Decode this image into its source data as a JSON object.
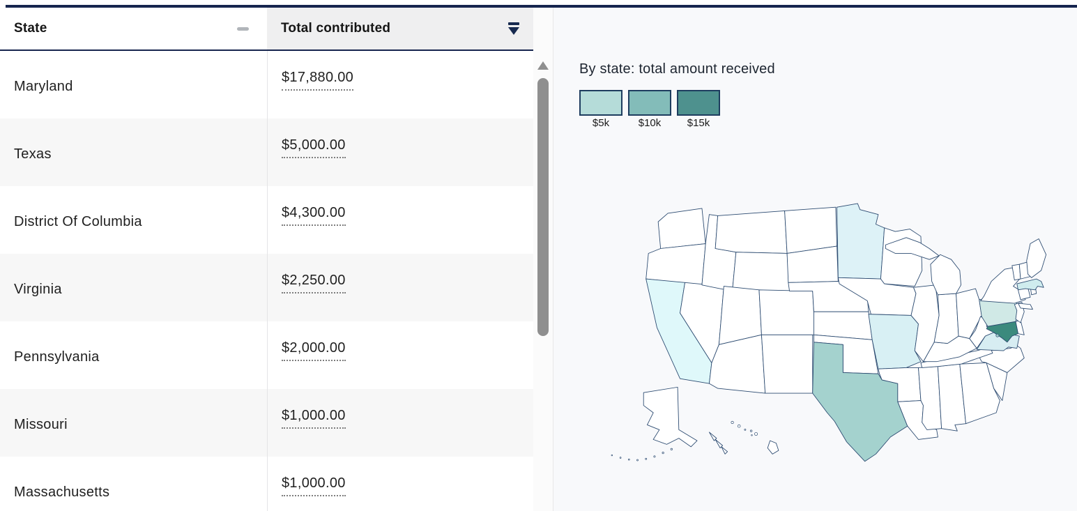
{
  "table": {
    "header": {
      "state_label": "State",
      "amount_label": "Total contributed"
    },
    "rows": [
      {
        "state": "Maryland",
        "amount": "$17,880.00"
      },
      {
        "state": "Texas",
        "amount": "$5,000.00"
      },
      {
        "state": "District Of Columbia",
        "amount": "$4,300.00"
      },
      {
        "state": "Virginia",
        "amount": "$2,250.00"
      },
      {
        "state": "Pennsylvania",
        "amount": "$2,000.00"
      },
      {
        "state": "Missouri",
        "amount": "$1,000.00"
      },
      {
        "state": "Massachusetts",
        "amount": "$1,000.00"
      }
    ]
  },
  "legend": {
    "title": "By state: total amount received",
    "stops": [
      {
        "label": "$5k",
        "color": "#b5dcd9"
      },
      {
        "label": "$10k",
        "color": "#83bcb9"
      },
      {
        "label": "$15k",
        "color": "#4e918e"
      }
    ]
  },
  "map": {
    "stroke": "#2b4a70",
    "default_fill": "#ffffff",
    "state_fills": {
      "MD": "#3b8a7d",
      "DC": "#9ccbc7",
      "TX": "#a4d2ce",
      "PA": "#d0e9e6",
      "VA": "#d7edf2",
      "MO": "#d8f0f4",
      "MN": "#ddf2f7",
      "CA": "#dff8fa",
      "MA": "#cfecee",
      "FL": "#def3f6"
    }
  },
  "chart_data": {
    "type": "heatmap",
    "subtype": "us-choropleth",
    "title": "By state: total amount received",
    "legend_ticks": [
      "$5k",
      "$10k",
      "$15k"
    ],
    "values": {
      "Maryland": 17880,
      "Texas": 5000,
      "District Of Columbia": 4300,
      "Virginia": 2250,
      "Pennsylvania": 2000,
      "Missouri": 1000,
      "Massachusetts": 1000
    },
    "shaded_states_value_not_visible": [
      "Minnesota",
      "California",
      "Florida"
    ]
  }
}
